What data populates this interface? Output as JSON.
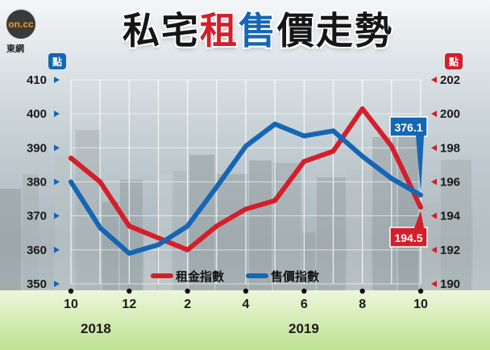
{
  "header": {
    "title_parts": [
      "私宅",
      "租",
      "售",
      "價走勢"
    ],
    "logo_text": "on.cc",
    "logo_sub": "東網"
  },
  "colors": {
    "rent": "#d41f2b",
    "sale": "#1566b4",
    "grid": "#ffffff",
    "tick_text": "#1a1a1a"
  },
  "chart_data": {
    "type": "line",
    "title": "私宅租售價走勢",
    "x": [
      "10",
      "11",
      "12",
      "1",
      "2",
      "3",
      "4",
      "5",
      "6",
      "7",
      "8",
      "9",
      "10"
    ],
    "x_tick_labels": [
      "10",
      "12",
      "2",
      "4",
      "6",
      "8",
      "10"
    ],
    "year_labels": [
      "2018",
      "2019"
    ],
    "left_axis": {
      "unit": "點",
      "ylim": [
        350,
        410
      ],
      "ticks": [
        350,
        360,
        370,
        380,
        390,
        400,
        410
      ]
    },
    "right_axis": {
      "unit": "點",
      "ylim": [
        190,
        202
      ],
      "ticks": [
        190,
        192,
        194,
        196,
        198,
        200,
        202
      ]
    },
    "series": [
      {
        "name": "租金指數",
        "axis": "right",
        "color": "#d41f2b",
        "values": [
          197.4,
          196.0,
          193.4,
          192.7,
          192.0,
          193.4,
          194.4,
          194.9,
          197.2,
          197.8,
          200.3,
          198.1,
          194.5
        ],
        "end_label": "194.5"
      },
      {
        "name": "售價指數",
        "axis": "left",
        "color": "#1566b4",
        "values": [
          380.0,
          366.5,
          359.0,
          361.5,
          367.0,
          378.5,
          390.5,
          397.0,
          393.5,
          395.0,
          387.5,
          381.0,
          376.1
        ],
        "end_label": "376.1"
      }
    ]
  },
  "legend": {
    "rent": "租金指數",
    "sale": "售價指數"
  }
}
